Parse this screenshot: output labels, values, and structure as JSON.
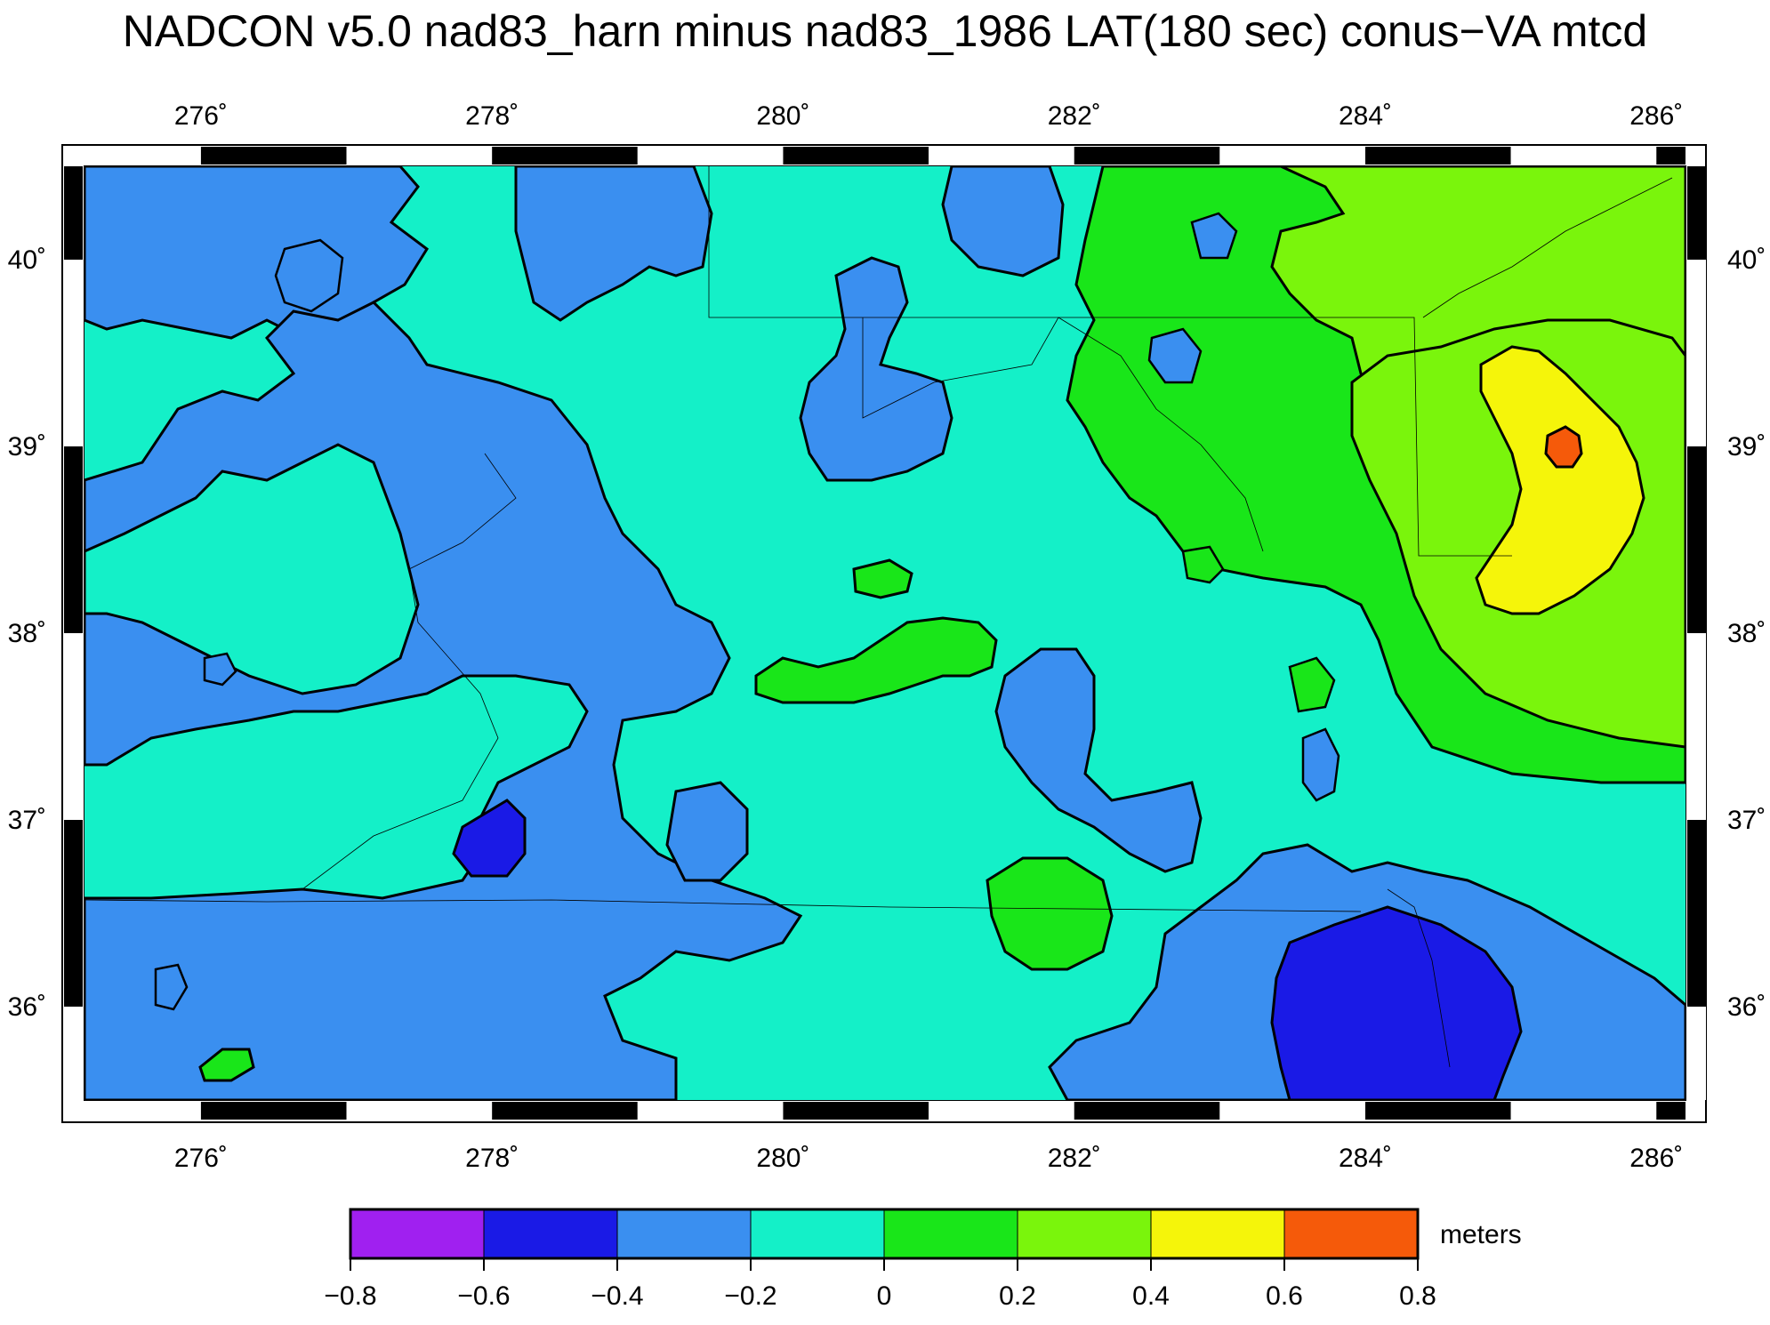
{
  "title": "NADCON v5.0 nad83_harn minus nad83_1986 LAT(180 sec) conus−VA mtcd",
  "map": {
    "lon_range": [
      275.2,
      286.2
    ],
    "lat_range": [
      35.5,
      40.5
    ],
    "lon_ticks": [
      {
        "value": 276,
        "label": "276˚"
      },
      {
        "value": 278,
        "label": "278˚"
      },
      {
        "value": 280,
        "label": "280˚"
      },
      {
        "value": 282,
        "label": "282˚"
      },
      {
        "value": 284,
        "label": "284˚"
      },
      {
        "value": 286,
        "label": "286˚"
      }
    ],
    "lat_ticks": [
      {
        "value": 36,
        "label": "36˚"
      },
      {
        "value": 37,
        "label": "37˚"
      },
      {
        "value": 38,
        "label": "38˚"
      },
      {
        "value": 39,
        "label": "39˚"
      },
      {
        "value": 40,
        "label": "40˚"
      }
    ]
  },
  "colorbar": {
    "unit": "meters",
    "ticks": [
      "−0.8",
      "−0.6",
      "−0.4",
      "−0.2",
      "0",
      "0.2",
      "0.4",
      "0.6",
      "0.8"
    ],
    "colors": [
      "#a020f0",
      "#1a1ae6",
      "#3a8ff0",
      "#14f0c8",
      "#19e619",
      "#7af50c",
      "#f5f50a",
      "#f55a0a"
    ]
  }
}
